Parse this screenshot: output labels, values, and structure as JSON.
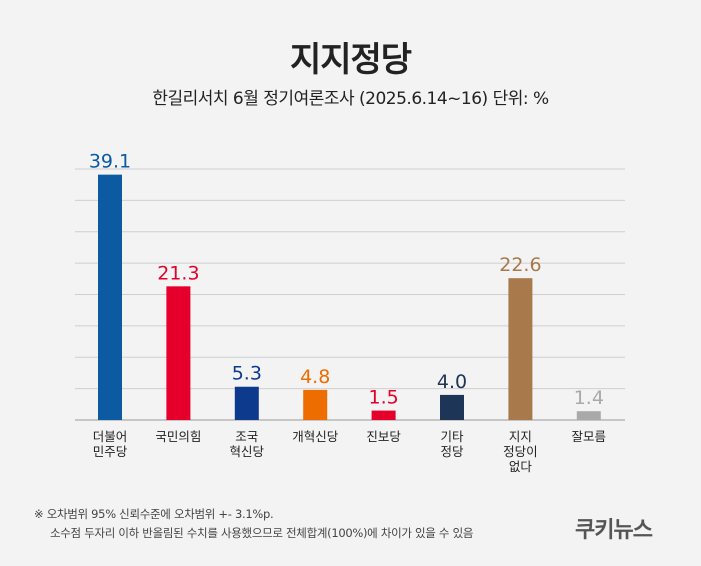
{
  "chart_data": {
    "type": "bar",
    "title": "지지정당",
    "subtitle": "한길리서치 6월 정기여론조사 (2025.6.14~16) 단위: %",
    "categories": [
      [
        "더불어",
        "민주당"
      ],
      [
        "국민의힘"
      ],
      [
        "조국",
        "혁신당"
      ],
      [
        "개혁신당"
      ],
      [
        "진보당"
      ],
      [
        "기타",
        "정당"
      ],
      [
        "지지",
        "정당이",
        "없다"
      ],
      [
        "잘모름"
      ]
    ],
    "values": [
      39.1,
      21.3,
      5.3,
      4.8,
      1.5,
      4.0,
      22.6,
      1.4
    ],
    "value_labels": [
      "39.1",
      "21.3",
      "5.3",
      "4.8",
      "1.5",
      "4.0",
      "22.6",
      "1.4"
    ],
    "colors": [
      "#0b5aa2",
      "#e4002b",
      "#0d3a8c",
      "#ee6d00",
      "#e4002b",
      "#1d3557",
      "#a8794b",
      "#a9a9a9"
    ],
    "ylim": [
      0,
      40
    ],
    "grid": true,
    "grid_step": 5
  },
  "notes": [
    "※ 오차범위 95% 신뢰수준에 오차범위 +- 3.1%p.",
    "소수점 두자리 이하 반올림된 수치를 사용했으므로 전체합계(100%)에 차이가 있을 수 있음"
  ],
  "logo": "쿠키뉴스"
}
